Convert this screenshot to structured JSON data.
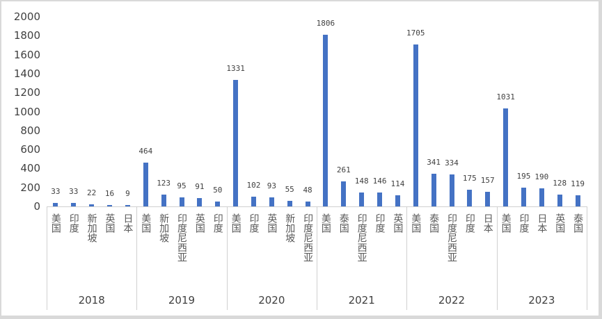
{
  "chart_data": {
    "type": "bar",
    "title": "",
    "xlabel": "",
    "ylabel": "",
    "ylim": [
      0,
      2000
    ],
    "yticks": [
      0,
      200,
      400,
      600,
      800,
      1000,
      1200,
      1400,
      1600,
      1800,
      2000
    ],
    "grid": false,
    "legend": null,
    "bar_color": "#4472C4",
    "groups": [
      {
        "year": "2018",
        "categories": [
          "美国",
          "印度",
          "新加坡",
          "英国",
          "日本"
        ],
        "values": [
          33,
          33,
          22,
          16,
          9
        ]
      },
      {
        "year": "2019",
        "categories": [
          "美国",
          "新加坡",
          "印度尼西亚",
          "英国",
          "印度"
        ],
        "values": [
          464,
          123,
          95,
          91,
          50
        ]
      },
      {
        "year": "2020",
        "categories": [
          "美国",
          "印度",
          "英国",
          "新加坡",
          "印度尼西亚"
        ],
        "values": [
          1331,
          102,
          93,
          55,
          48
        ]
      },
      {
        "year": "2021",
        "categories": [
          "美国",
          "泰国",
          "印度尼西亚",
          "印度",
          "英国"
        ],
        "values": [
          1806,
          261,
          148,
          146,
          114
        ]
      },
      {
        "year": "2022",
        "categories": [
          "美国",
          "泰国",
          "印度尼西亚",
          "印度",
          "日本"
        ],
        "values": [
          1705,
          341,
          334,
          175,
          157
        ]
      },
      {
        "year": "2023",
        "categories": [
          "美国",
          "印度",
          "日本",
          "英国",
          "泰国"
        ],
        "values": [
          1031,
          195,
          190,
          128,
          119
        ]
      }
    ]
  }
}
